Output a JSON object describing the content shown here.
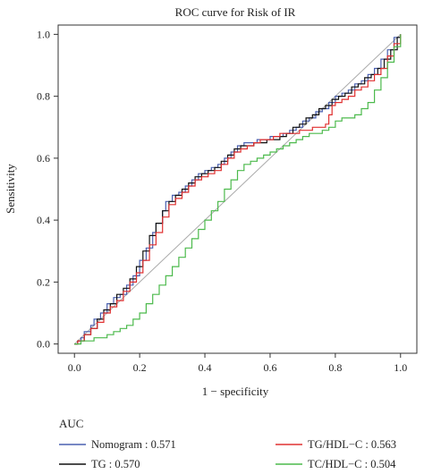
{
  "chart_data": {
    "type": "line",
    "title": "ROC curve for Risk of IR",
    "xlabel": "1 − specificity",
    "ylabel": "Sensitivity",
    "xlim": [
      -0.05,
      1.05
    ],
    "ylim": [
      -0.03,
      1.03
    ],
    "x_ticks": [
      "0.0",
      "0.2",
      "0.4",
      "0.6",
      "0.8",
      "1.0"
    ],
    "y_ticks": [
      "0.0",
      "0.2",
      "0.4",
      "0.6",
      "0.8",
      "1.0"
    ],
    "grid": false,
    "reference_line": [
      [
        0,
        0
      ],
      [
        1,
        1
      ]
    ],
    "legend": {
      "heading": "AUC",
      "placement": "bottom",
      "entries": [
        {
          "label": "Nomogram : 0.571",
          "color": "#4a60b0"
        },
        {
          "label": "TG/HDL−C : 0.563",
          "color": "#e03030"
        },
        {
          "label": "TG : 0.570",
          "color": "#111111"
        },
        {
          "label": "TC/HDL−C : 0.504",
          "color": "#4cba4c"
        }
      ]
    },
    "series": [
      {
        "name": "Nomogram : 0.571",
        "color": "#4a60b0",
        "points": [
          [
            0,
            0
          ],
          [
            0.01,
            0.01
          ],
          [
            0.02,
            0.02
          ],
          [
            0.03,
            0.04
          ],
          [
            0.05,
            0.06
          ],
          [
            0.06,
            0.08
          ],
          [
            0.08,
            0.1
          ],
          [
            0.1,
            0.13
          ],
          [
            0.12,
            0.15
          ],
          [
            0.14,
            0.16
          ],
          [
            0.16,
            0.19
          ],
          [
            0.18,
            0.22
          ],
          [
            0.2,
            0.27
          ],
          [
            0.22,
            0.31
          ],
          [
            0.24,
            0.36
          ],
          [
            0.25,
            0.39
          ],
          [
            0.27,
            0.43
          ],
          [
            0.28,
            0.46
          ],
          [
            0.3,
            0.48
          ],
          [
            0.32,
            0.49
          ],
          [
            0.34,
            0.51
          ],
          [
            0.36,
            0.53
          ],
          [
            0.38,
            0.55
          ],
          [
            0.4,
            0.56
          ],
          [
            0.42,
            0.57
          ],
          [
            0.44,
            0.58
          ],
          [
            0.46,
            0.6
          ],
          [
            0.48,
            0.62
          ],
          [
            0.5,
            0.64
          ],
          [
            0.52,
            0.65
          ],
          [
            0.54,
            0.65
          ],
          [
            0.56,
            0.66
          ],
          [
            0.58,
            0.66
          ],
          [
            0.6,
            0.67
          ],
          [
            0.62,
            0.67
          ],
          [
            0.64,
            0.68
          ],
          [
            0.66,
            0.69
          ],
          [
            0.68,
            0.7
          ],
          [
            0.7,
            0.72
          ],
          [
            0.72,
            0.73
          ],
          [
            0.74,
            0.75
          ],
          [
            0.76,
            0.76
          ],
          [
            0.78,
            0.78
          ],
          [
            0.8,
            0.8
          ],
          [
            0.82,
            0.81
          ],
          [
            0.84,
            0.82
          ],
          [
            0.86,
            0.84
          ],
          [
            0.88,
            0.85
          ],
          [
            0.9,
            0.87
          ],
          [
            0.92,
            0.89
          ],
          [
            0.94,
            0.92
          ],
          [
            0.96,
            0.95
          ],
          [
            0.98,
            0.99
          ],
          [
            1,
            1
          ]
        ]
      },
      {
        "name": "TG : 0.570",
        "color": "#111111",
        "points": [
          [
            0,
            0
          ],
          [
            0.01,
            0.01
          ],
          [
            0.03,
            0.03
          ],
          [
            0.05,
            0.05
          ],
          [
            0.07,
            0.08
          ],
          [
            0.09,
            0.11
          ],
          [
            0.11,
            0.13
          ],
          [
            0.13,
            0.16
          ],
          [
            0.15,
            0.18
          ],
          [
            0.17,
            0.21
          ],
          [
            0.19,
            0.25
          ],
          [
            0.21,
            0.3
          ],
          [
            0.23,
            0.35
          ],
          [
            0.25,
            0.39
          ],
          [
            0.27,
            0.43
          ],
          [
            0.29,
            0.46
          ],
          [
            0.31,
            0.48
          ],
          [
            0.33,
            0.5
          ],
          [
            0.35,
            0.52
          ],
          [
            0.37,
            0.54
          ],
          [
            0.39,
            0.55
          ],
          [
            0.41,
            0.56
          ],
          [
            0.43,
            0.57
          ],
          [
            0.45,
            0.59
          ],
          [
            0.47,
            0.61
          ],
          [
            0.49,
            0.63
          ],
          [
            0.51,
            0.64
          ],
          [
            0.53,
            0.64
          ],
          [
            0.55,
            0.65
          ],
          [
            0.57,
            0.65
          ],
          [
            0.59,
            0.66
          ],
          [
            0.61,
            0.66
          ],
          [
            0.63,
            0.67
          ],
          [
            0.65,
            0.68
          ],
          [
            0.67,
            0.7
          ],
          [
            0.69,
            0.71
          ],
          [
            0.71,
            0.73
          ],
          [
            0.73,
            0.74
          ],
          [
            0.75,
            0.76
          ],
          [
            0.77,
            0.77
          ],
          [
            0.79,
            0.79
          ],
          [
            0.81,
            0.8
          ],
          [
            0.83,
            0.81
          ],
          [
            0.85,
            0.83
          ],
          [
            0.87,
            0.84
          ],
          [
            0.89,
            0.86
          ],
          [
            0.91,
            0.87
          ],
          [
            0.93,
            0.89
          ],
          [
            0.95,
            0.92
          ],
          [
            0.97,
            0.95
          ],
          [
            0.99,
            0.99
          ],
          [
            1,
            1
          ]
        ]
      },
      {
        "name": "TG/HDL−C : 0.563",
        "color": "#e03030",
        "points": [
          [
            0,
            0
          ],
          [
            0.01,
            0.01
          ],
          [
            0.03,
            0.03
          ],
          [
            0.05,
            0.05
          ],
          [
            0.07,
            0.07
          ],
          [
            0.09,
            0.1
          ],
          [
            0.11,
            0.12
          ],
          [
            0.13,
            0.14
          ],
          [
            0.15,
            0.17
          ],
          [
            0.17,
            0.2
          ],
          [
            0.19,
            0.23
          ],
          [
            0.21,
            0.27
          ],
          [
            0.23,
            0.32
          ],
          [
            0.25,
            0.36
          ],
          [
            0.27,
            0.41
          ],
          [
            0.29,
            0.45
          ],
          [
            0.31,
            0.47
          ],
          [
            0.33,
            0.49
          ],
          [
            0.35,
            0.51
          ],
          [
            0.37,
            0.53
          ],
          [
            0.39,
            0.54
          ],
          [
            0.41,
            0.55
          ],
          [
            0.43,
            0.56
          ],
          [
            0.45,
            0.58
          ],
          [
            0.47,
            0.6
          ],
          [
            0.49,
            0.62
          ],
          [
            0.51,
            0.63
          ],
          [
            0.53,
            0.64
          ],
          [
            0.55,
            0.65
          ],
          [
            0.57,
            0.66
          ],
          [
            0.59,
            0.66
          ],
          [
            0.61,
            0.67
          ],
          [
            0.63,
            0.68
          ],
          [
            0.65,
            0.68
          ],
          [
            0.67,
            0.68
          ],
          [
            0.69,
            0.69
          ],
          [
            0.71,
            0.69
          ],
          [
            0.73,
            0.7
          ],
          [
            0.75,
            0.7
          ],
          [
            0.77,
            0.71
          ],
          [
            0.78,
            0.74
          ],
          [
            0.79,
            0.77
          ],
          [
            0.8,
            0.78
          ],
          [
            0.82,
            0.79
          ],
          [
            0.84,
            0.8
          ],
          [
            0.86,
            0.82
          ],
          [
            0.88,
            0.83
          ],
          [
            0.9,
            0.85
          ],
          [
            0.92,
            0.87
          ],
          [
            0.94,
            0.89
          ],
          [
            0.96,
            0.93
          ],
          [
            0.98,
            0.97
          ],
          [
            1,
            1
          ]
        ]
      },
      {
        "name": "TC/HDL−C : 0.504",
        "color": "#4cba4c",
        "points": [
          [
            0,
            0
          ],
          [
            0.02,
            0.01
          ],
          [
            0.04,
            0.01
          ],
          [
            0.06,
            0.02
          ],
          [
            0.08,
            0.02
          ],
          [
            0.1,
            0.03
          ],
          [
            0.12,
            0.04
          ],
          [
            0.14,
            0.05
          ],
          [
            0.16,
            0.06
          ],
          [
            0.18,
            0.08
          ],
          [
            0.2,
            0.1
          ],
          [
            0.22,
            0.13
          ],
          [
            0.24,
            0.16
          ],
          [
            0.26,
            0.19
          ],
          [
            0.28,
            0.22
          ],
          [
            0.3,
            0.25
          ],
          [
            0.32,
            0.28
          ],
          [
            0.34,
            0.31
          ],
          [
            0.36,
            0.34
          ],
          [
            0.38,
            0.37
          ],
          [
            0.4,
            0.4
          ],
          [
            0.42,
            0.43
          ],
          [
            0.44,
            0.46
          ],
          [
            0.46,
            0.5
          ],
          [
            0.48,
            0.53
          ],
          [
            0.5,
            0.56
          ],
          [
            0.52,
            0.58
          ],
          [
            0.54,
            0.59
          ],
          [
            0.56,
            0.6
          ],
          [
            0.58,
            0.61
          ],
          [
            0.6,
            0.62
          ],
          [
            0.62,
            0.63
          ],
          [
            0.64,
            0.64
          ],
          [
            0.66,
            0.65
          ],
          [
            0.68,
            0.66
          ],
          [
            0.7,
            0.67
          ],
          [
            0.72,
            0.68
          ],
          [
            0.74,
            0.68
          ],
          [
            0.76,
            0.69
          ],
          [
            0.78,
            0.7
          ],
          [
            0.8,
            0.72
          ],
          [
            0.82,
            0.73
          ],
          [
            0.84,
            0.73
          ],
          [
            0.86,
            0.74
          ],
          [
            0.88,
            0.76
          ],
          [
            0.9,
            0.78
          ],
          [
            0.92,
            0.82
          ],
          [
            0.94,
            0.86
          ],
          [
            0.96,
            0.91
          ],
          [
            0.98,
            0.96
          ],
          [
            1,
            1
          ]
        ]
      }
    ]
  }
}
